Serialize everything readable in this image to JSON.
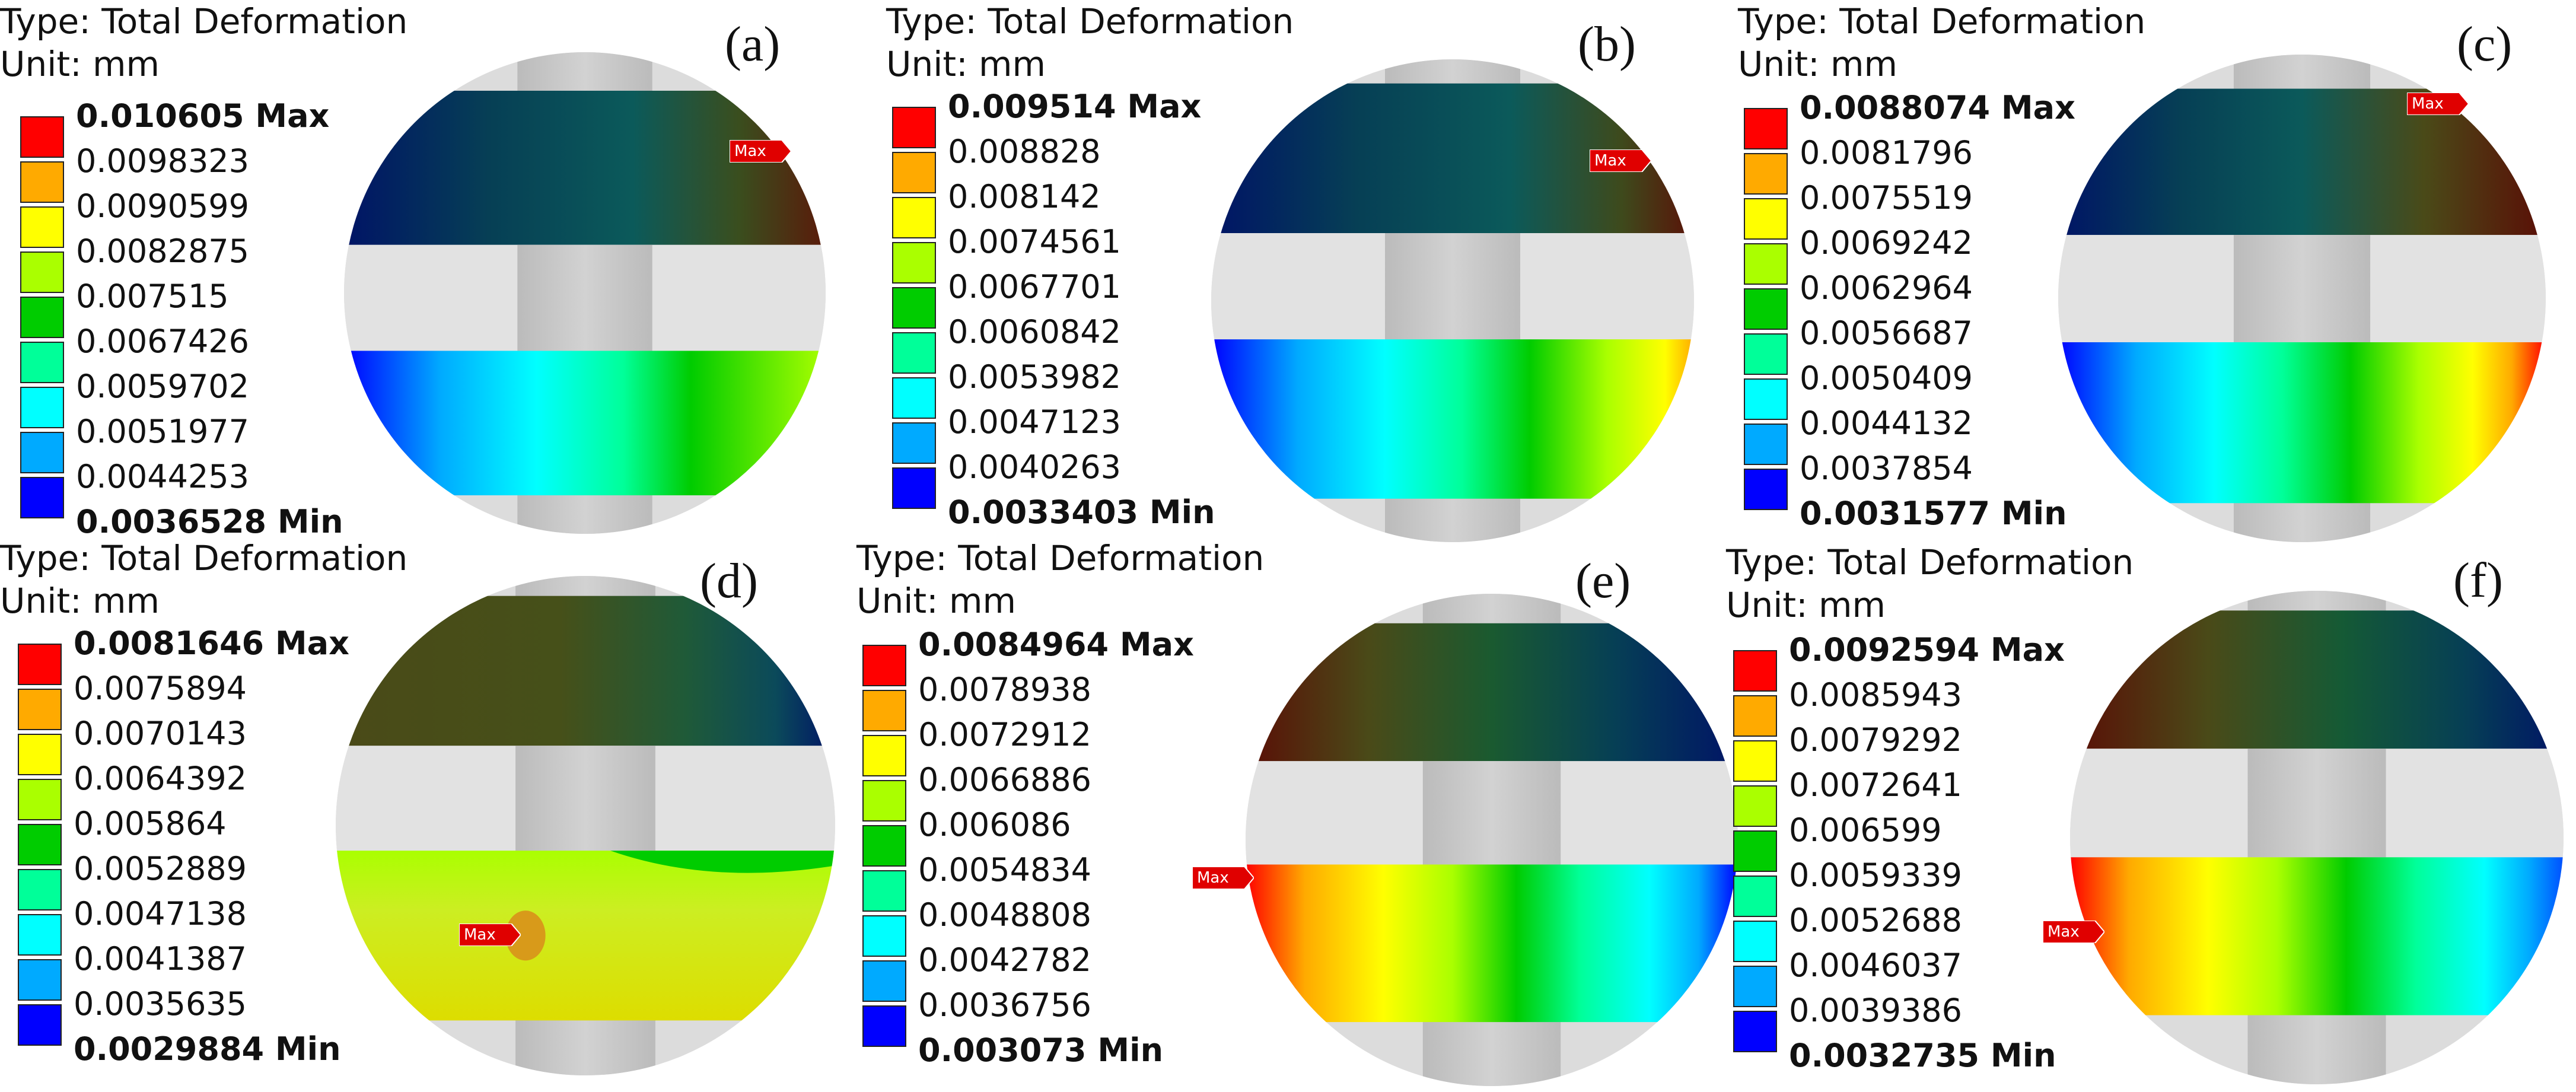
{
  "panels": [
    {
      "letter": "(a)",
      "type_label": "Type: Total Deformation",
      "unit_label": "Unit: mm",
      "legend": [
        "0.010605 Max",
        "0.0098323",
        "0.0090599",
        "0.0082875",
        "0.007515",
        "0.0067426",
        "0.0059702",
        "0.0051977",
        "0.0044253",
        "0.0036528 Min"
      ],
      "max_label": "Max"
    },
    {
      "letter": "(b)",
      "type_label": "Type: Total Deformation",
      "unit_label": "Unit: mm",
      "legend": [
        "0.009514 Max",
        "0.008828",
        "0.008142",
        "0.0074561",
        "0.0067701",
        "0.0060842",
        "0.0053982",
        "0.0047123",
        "0.0040263",
        "0.0033403 Min"
      ],
      "max_label": "Max"
    },
    {
      "letter": "(c)",
      "type_label": "Type: Total Deformation",
      "unit_label": "Unit: mm",
      "legend": [
        "0.0088074 Max",
        "0.0081796",
        "0.0075519",
        "0.0069242",
        "0.0062964",
        "0.0056687",
        "0.0050409",
        "0.0044132",
        "0.0037854",
        "0.0031577 Min"
      ],
      "max_label": "Max"
    },
    {
      "letter": "(d)",
      "type_label": "Type: Total Deformation",
      "unit_label": "Unit: mm",
      "legend": [
        "0.0081646 Max",
        "0.0075894",
        "0.0070143",
        "0.0064392",
        "0.005864",
        "0.0052889",
        "0.0047138",
        "0.0041387",
        "0.0035635",
        "0.0029884 Min"
      ],
      "max_label": "Max"
    },
    {
      "letter": "(e)",
      "type_label": "Type: Total Deformation",
      "unit_label": "Unit: mm",
      "legend": [
        "0.0084964 Max",
        "0.0078938",
        "0.0072912",
        "0.0066886",
        "0.006086",
        "0.0054834",
        "0.0048808",
        "0.0042782",
        "0.0036756",
        "0.003073 Min"
      ],
      "max_label": "Max"
    },
    {
      "letter": "(f)",
      "type_label": "Type: Total Deformation",
      "unit_label": "Unit: mm",
      "legend": [
        "0.0092594 Max",
        "0.0085943",
        "0.0079292",
        "0.0072641",
        "0.006599",
        "0.0059339",
        "0.0052688",
        "0.0046037",
        "0.0039386",
        "0.0032735 Min"
      ],
      "max_label": "Max"
    }
  ],
  "colors": {
    "legend_scale": [
      "#ff0000",
      "#ffaa00",
      "#ffff00",
      "#aaff00",
      "#00cc00",
      "#00ff99",
      "#00ffff",
      "#00aaff",
      "#0000ff"
    ],
    "disc_grey": "#dcdcdc",
    "shaft_grey": "#c4c4c4",
    "marker_red": "#e00000"
  }
}
